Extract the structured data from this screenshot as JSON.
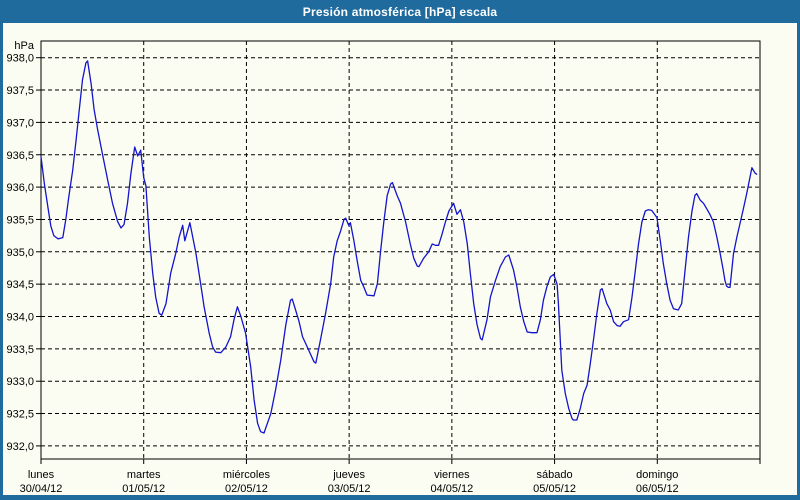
{
  "window": {
    "title": "Presión atmosférica [hPa] escala",
    "frame_color": "#1f6b9e",
    "title_text_color": "#ffffff",
    "content_background": "#fcfdf2"
  },
  "chart_data": {
    "type": "line",
    "title": "Presión atmosférica [hPa] escala",
    "unit_label": "hPa",
    "ylabel": "hPa",
    "ylim": [
      932.0,
      938.0
    ],
    "ytick_step": 0.5,
    "ytick_labels": [
      "938,0",
      "937,5",
      "937,0",
      "936,5",
      "936,0",
      "935,5",
      "935,0",
      "934,5",
      "934,0",
      "933,5",
      "933,0",
      "932,5",
      "932,0"
    ],
    "x_unit": "hours_from_monday_00h",
    "xlim": [
      0,
      168
    ],
    "grid": "dashed-black",
    "line_color": "#1414cc",
    "legend": "none",
    "days": [
      {
        "day": "lunes",
        "date": "30/04/12"
      },
      {
        "day": "martes",
        "date": "01/05/12"
      },
      {
        "day": "miércoles",
        "date": "02/05/12"
      },
      {
        "day": "jueves",
        "date": "03/05/12"
      },
      {
        "day": "viernes",
        "date": "04/05/12"
      },
      {
        "day": "sábado",
        "date": "05/05/12"
      },
      {
        "day": "domingo",
        "date": "06/05/12"
      }
    ],
    "series": [
      {
        "name": "Presión atmosférica",
        "points": [
          [
            0,
            936.47
          ],
          [
            0.8,
            936.05
          ],
          [
            1.6,
            935.7
          ],
          [
            2.3,
            935.4
          ],
          [
            3,
            935.25
          ],
          [
            4,
            935.2
          ],
          [
            5.1,
            935.22
          ],
          [
            5.8,
            935.5
          ],
          [
            6.5,
            935.85
          ],
          [
            7.4,
            936.26
          ],
          [
            8.2,
            936.73
          ],
          [
            8.9,
            937.17
          ],
          [
            9.7,
            937.66
          ],
          [
            10.5,
            937.92
          ],
          [
            10.9,
            937.95
          ],
          [
            11.7,
            937.6
          ],
          [
            12.4,
            937.2
          ],
          [
            13.2,
            936.9
          ],
          [
            14.4,
            936.5
          ],
          [
            15.6,
            936.1
          ],
          [
            16.7,
            935.75
          ],
          [
            17.9,
            935.47
          ],
          [
            18.7,
            935.37
          ],
          [
            19.4,
            935.42
          ],
          [
            20.2,
            935.75
          ],
          [
            21,
            936.21
          ],
          [
            21.9,
            936.62
          ],
          [
            22.6,
            936.48
          ],
          [
            23.3,
            936.57
          ],
          [
            24,
            936.15
          ],
          [
            24.5,
            936.02
          ],
          [
            25.3,
            935.23
          ],
          [
            26.1,
            934.67
          ],
          [
            26.8,
            934.3
          ],
          [
            27.6,
            934.05
          ],
          [
            28.2,
            934.02
          ],
          [
            29.2,
            934.2
          ],
          [
            30.3,
            934.67
          ],
          [
            31.5,
            934.98
          ],
          [
            32.3,
            935.23
          ],
          [
            33.1,
            935.41
          ],
          [
            33.6,
            935.17
          ],
          [
            34.8,
            935.45
          ],
          [
            36.2,
            934.98
          ],
          [
            37.3,
            934.51
          ],
          [
            38.1,
            934.15
          ],
          [
            39.3,
            933.74
          ],
          [
            40.1,
            933.53
          ],
          [
            40.8,
            933.45
          ],
          [
            42,
            933.44
          ],
          [
            43.2,
            933.53
          ],
          [
            44.3,
            933.69
          ],
          [
            45.1,
            933.95
          ],
          [
            45.9,
            934.15
          ],
          [
            46.7,
            934
          ],
          [
            47.8,
            933.74
          ],
          [
            49,
            933.22
          ],
          [
            49.8,
            932.71
          ],
          [
            50.6,
            932.35
          ],
          [
            51.3,
            932.22
          ],
          [
            52.1,
            932.2
          ],
          [
            52.9,
            932.35
          ],
          [
            53.7,
            932.5
          ],
          [
            54.8,
            932.86
          ],
          [
            56,
            933.32
          ],
          [
            57.2,
            933.87
          ],
          [
            58.3,
            934.25
          ],
          [
            58.7,
            934.27
          ],
          [
            59.5,
            934.1
          ],
          [
            60.3,
            933.92
          ],
          [
            61.1,
            933.69
          ],
          [
            62.2,
            933.53
          ],
          [
            63.8,
            933.3
          ],
          [
            64.2,
            933.28
          ],
          [
            65.3,
            933.64
          ],
          [
            66.5,
            934.05
          ],
          [
            67.7,
            934.51
          ],
          [
            68.4,
            934.92
          ],
          [
            69.2,
            935.17
          ],
          [
            70,
            935.32
          ],
          [
            70.8,
            935.5
          ],
          [
            71.2,
            935.52
          ],
          [
            71.9,
            935.41
          ],
          [
            72.3,
            935.45
          ],
          [
            73.1,
            935.17
          ],
          [
            73.9,
            934.85
          ],
          [
            74.7,
            934.56
          ],
          [
            75.4,
            934.46
          ],
          [
            76.2,
            934.33
          ],
          [
            77.8,
            934.32
          ],
          [
            78.6,
            934.51
          ],
          [
            79.3,
            934.98
          ],
          [
            80.1,
            935.46
          ],
          [
            80.9,
            935.87
          ],
          [
            81.7,
            936.05
          ],
          [
            82.1,
            936.07
          ],
          [
            83.2,
            935.87
          ],
          [
            84,
            935.75
          ],
          [
            85.2,
            935.46
          ],
          [
            86.3,
            935.12
          ],
          [
            87.1,
            934.9
          ],
          [
            87.9,
            934.78
          ],
          [
            88.3,
            934.77
          ],
          [
            89.4,
            934.9
          ],
          [
            90.6,
            935
          ],
          [
            91.4,
            935.12
          ],
          [
            92.2,
            935.1
          ],
          [
            92.9,
            935.1
          ],
          [
            93.7,
            935.27
          ],
          [
            94.5,
            935.46
          ],
          [
            95.3,
            935.63
          ],
          [
            96.4,
            935.75
          ],
          [
            97.2,
            935.58
          ],
          [
            98,
            935.65
          ],
          [
            98.8,
            935.46
          ],
          [
            99.6,
            935.12
          ],
          [
            100.3,
            934.67
          ],
          [
            101.1,
            934.2
          ],
          [
            101.9,
            933.87
          ],
          [
            102.7,
            933.66
          ],
          [
            103.1,
            933.64
          ],
          [
            104.2,
            933.95
          ],
          [
            105,
            934.3
          ],
          [
            106.2,
            934.56
          ],
          [
            107.3,
            934.77
          ],
          [
            108.5,
            934.92
          ],
          [
            109.3,
            934.95
          ],
          [
            110.4,
            934.72
          ],
          [
            111.2,
            934.46
          ],
          [
            112,
            934.15
          ],
          [
            112.8,
            933.92
          ],
          [
            113.6,
            933.76
          ],
          [
            114.7,
            933.75
          ],
          [
            115.9,
            933.75
          ],
          [
            116.7,
            933.95
          ],
          [
            117.4,
            934.25
          ],
          [
            118.2,
            934.46
          ],
          [
            119,
            934.61
          ],
          [
            119.8,
            934.65
          ],
          [
            120.6,
            934.5
          ],
          [
            120.9,
            934.2
          ],
          [
            121.7,
            933.17
          ],
          [
            122.5,
            932.81
          ],
          [
            123.3,
            932.58
          ],
          [
            124.1,
            932.42
          ],
          [
            124.4,
            932.4
          ],
          [
            125.2,
            932.4
          ],
          [
            126,
            932.58
          ],
          [
            126.8,
            932.81
          ],
          [
            127.6,
            932.94
          ],
          [
            128.3,
            933.25
          ],
          [
            129.1,
            933.64
          ],
          [
            129.9,
            934.05
          ],
          [
            130.7,
            934.41
          ],
          [
            131.1,
            934.43
          ],
          [
            132.2,
            934.2
          ],
          [
            133,
            934.1
          ],
          [
            133.8,
            933.92
          ],
          [
            134.6,
            933.86
          ],
          [
            135.3,
            933.85
          ],
          [
            136.1,
            933.92
          ],
          [
            137.3,
            933.95
          ],
          [
            138.1,
            934.3
          ],
          [
            138.8,
            934.67
          ],
          [
            139.6,
            935.12
          ],
          [
            140.4,
            935.46
          ],
          [
            141.2,
            935.63
          ],
          [
            141.9,
            935.65
          ],
          [
            142.7,
            935.64
          ],
          [
            143.9,
            935.53
          ],
          [
            144.7,
            935.17
          ],
          [
            145.4,
            934.82
          ],
          [
            146.2,
            934.51
          ],
          [
            147,
            934.25
          ],
          [
            147.8,
            934.12
          ],
          [
            148.9,
            934.1
          ],
          [
            149.7,
            934.2
          ],
          [
            150.5,
            934.72
          ],
          [
            151.3,
            935.23
          ],
          [
            152.1,
            935.63
          ],
          [
            152.8,
            935.87
          ],
          [
            153.2,
            935.9
          ],
          [
            154,
            935.8
          ],
          [
            154.8,
            935.75
          ],
          [
            155.6,
            935.66
          ],
          [
            156.3,
            935.58
          ],
          [
            157.1,
            935.46
          ],
          [
            157.9,
            935.23
          ],
          [
            158.7,
            934.97
          ],
          [
            159.4,
            934.72
          ],
          [
            159.8,
            934.56
          ],
          [
            160.2,
            934.47
          ],
          [
            160.6,
            934.45
          ],
          [
            161,
            934.45
          ],
          [
            161.8,
            934.97
          ],
          [
            162.6,
            935.23
          ],
          [
            163.3,
            935.43
          ],
          [
            164.1,
            935.66
          ],
          [
            164.9,
            935.9
          ],
          [
            165.7,
            936.17
          ],
          [
            166.1,
            936.3
          ],
          [
            166.8,
            936.22
          ],
          [
            167.2,
            936.2
          ]
        ]
      }
    ]
  }
}
